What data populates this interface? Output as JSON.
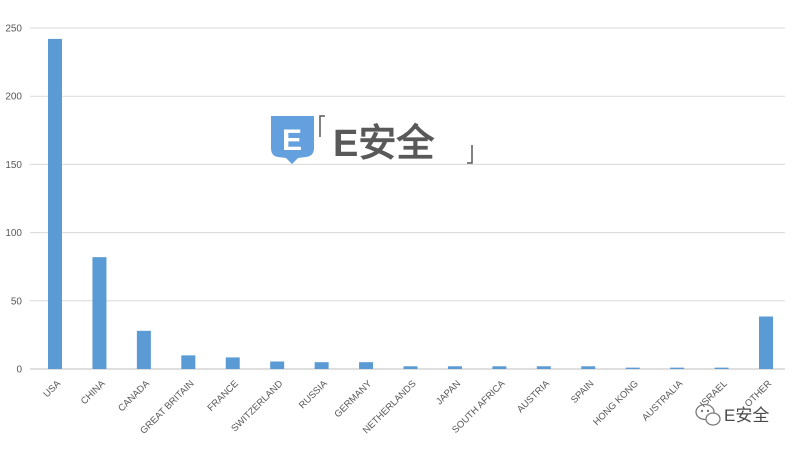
{
  "chart_data": {
    "type": "bar",
    "categories": [
      "USA",
      "CHINA",
      "CANADA",
      "GREAT BRITAIN",
      "FRANCE",
      "SWITZERLAND",
      "RUSSIA",
      "GERMANY",
      "NETHERLANDS",
      "JAPAN",
      "SOUTH AFRICA",
      "AUSTRIA",
      "SPAIN",
      "HONG KONG",
      "AUSTRALIA",
      "ISRAEL",
      "OTHER"
    ],
    "values": [
      242,
      82,
      28,
      10,
      8.5,
      5.5,
      5,
      5,
      2,
      2,
      2,
      2,
      2,
      1,
      1,
      1,
      38.5
    ],
    "yticks": [
      0,
      50,
      100,
      150,
      200,
      250
    ],
    "ylim": [
      0,
      250
    ],
    "grid": true,
    "bar_color": "#5b9bd5",
    "grid_color": "#d9d9d9",
    "axis_color": "#bfbfbf",
    "tick_label_color": "#595959"
  },
  "watermark": {
    "logo_letter": "E",
    "logo_text": "E安全",
    "logo_color": "#4a90d9",
    "text_color": "#3d3d3d",
    "badge_icon": "wechat-icon",
    "badge_text": "E安全"
  }
}
